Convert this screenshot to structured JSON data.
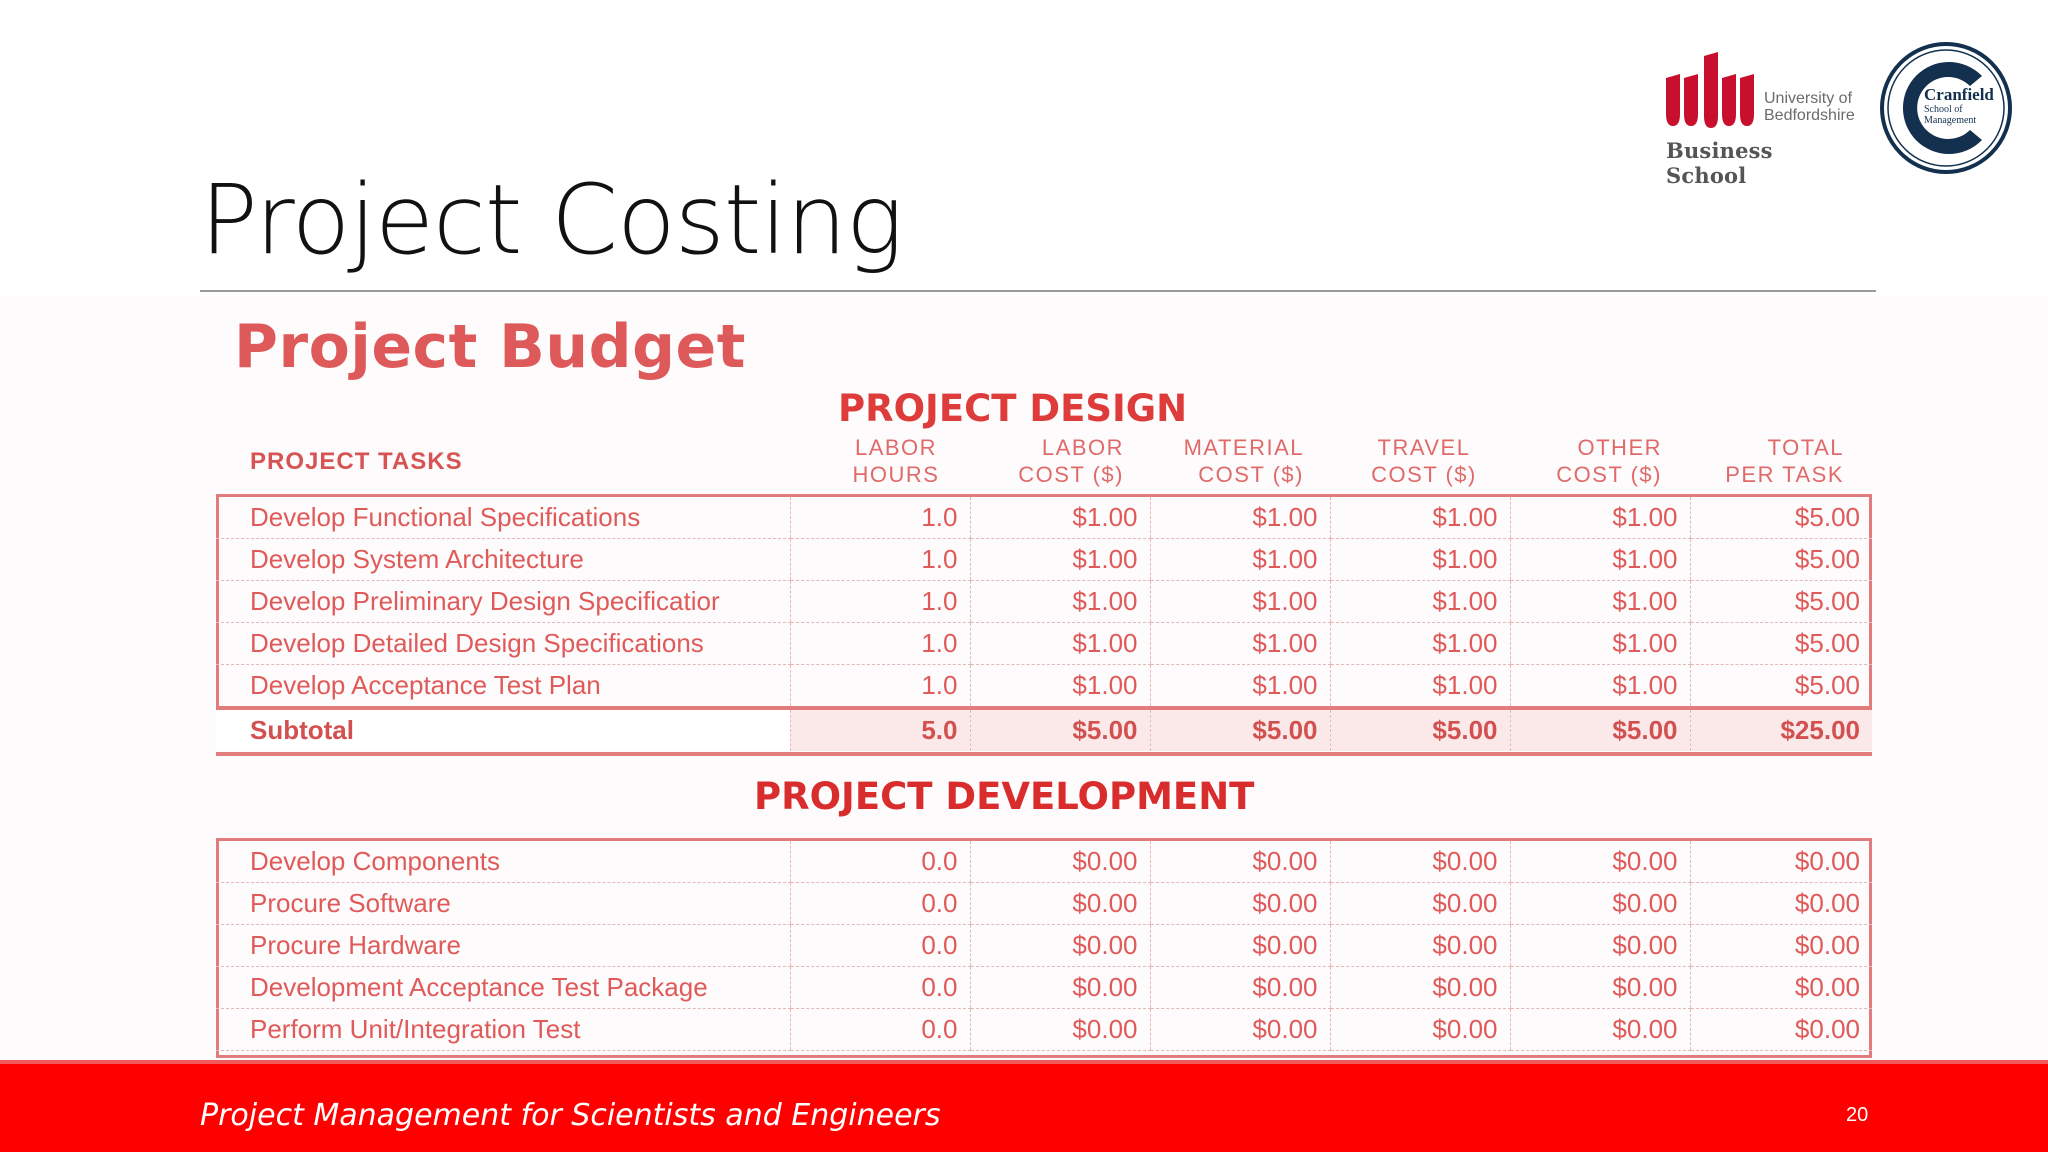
{
  "slide": {
    "title": "Project Costing",
    "footer": "Project Management for Scientists and Engineers",
    "page_number": "20"
  },
  "logos": {
    "university_line1": "University of",
    "university_line2": "Bedfordshire",
    "business_school": "Business School",
    "cranfield_name": "Cranfield",
    "cranfield_line1": "School of",
    "cranfield_line2": "Management"
  },
  "budget": {
    "heading": "Project Budget",
    "design_heading": "PROJECT DESIGN",
    "development_heading": "PROJECT DEVELOPMENT",
    "headers": {
      "tasks": "PROJECT TASKS",
      "labor_hours": [
        "LABOR",
        "HOURS"
      ],
      "labor_cost": [
        "LABOR",
        "COST ($)"
      ],
      "material_cost": [
        "MATERIAL",
        "COST ($)"
      ],
      "travel_cost": [
        "TRAVEL",
        "COST ($)"
      ],
      "other_cost": [
        "OTHER",
        "COST ($)"
      ],
      "total": [
        "TOTAL",
        "PER TASK"
      ]
    },
    "design_rows": [
      [
        "Develop Functional Specifications",
        "1.0",
        "$1.00",
        "$1.00",
        "$1.00",
        "$1.00",
        "$5.00"
      ],
      [
        "Develop System Architecture",
        "1.0",
        "$1.00",
        "$1.00",
        "$1.00",
        "$1.00",
        "$5.00"
      ],
      [
        "Develop Preliminary Design Specificatior",
        "1.0",
        "$1.00",
        "$1.00",
        "$1.00",
        "$1.00",
        "$5.00"
      ],
      [
        "Develop Detailed Design Specifications",
        "1.0",
        "$1.00",
        "$1.00",
        "$1.00",
        "$1.00",
        "$5.00"
      ],
      [
        "Develop Acceptance Test Plan",
        "1.0",
        "$1.00",
        "$1.00",
        "$1.00",
        "$1.00",
        "$5.00"
      ]
    ],
    "subtotal": [
      "Subtotal",
      "5.0",
      "$5.00",
      "$5.00",
      "$5.00",
      "$5.00",
      "$25.00"
    ],
    "development_rows": [
      [
        "Develop Components",
        "0.0",
        "$0.00",
        "$0.00",
        "$0.00",
        "$0.00",
        "$0.00"
      ],
      [
        "Procure Software",
        "0.0",
        "$0.00",
        "$0.00",
        "$0.00",
        "$0.00",
        "$0.00"
      ],
      [
        "Procure Hardware",
        "0.0",
        "$0.00",
        "$0.00",
        "$0.00",
        "$0.00",
        "$0.00"
      ],
      [
        "Development Acceptance Test Package",
        "0.0",
        "$0.00",
        "$0.00",
        "$0.00",
        "$0.00",
        "$0.00"
      ],
      [
        "Perform Unit/Integration Test",
        "0.0",
        "$0.00",
        "$0.00",
        "$0.00",
        "$0.00",
        "$0.00"
      ]
    ]
  },
  "colors": {
    "footer_bar": "#ff0000",
    "budget_red": "#e05a5a",
    "cranfield_navy": "#13304f",
    "bedfordshire_red": "#c8102e"
  }
}
